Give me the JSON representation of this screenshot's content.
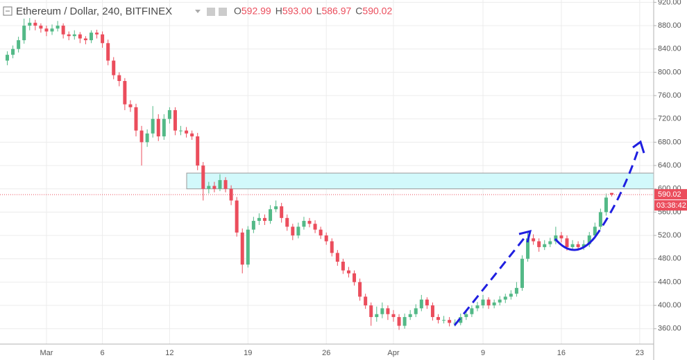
{
  "chart_data": {
    "type": "candlestick",
    "title": "Ethereum / Dollar, 240, BITFINEX",
    "ohlc_keys": [
      "O",
      "H",
      "L",
      "C"
    ],
    "ohlc_labels": [
      "592.99",
      "593.00",
      "586.97",
      "590.02"
    ],
    "countdown": "03:38:42",
    "up_color": "#53b987",
    "down_color": "#eb4d5c",
    "grid": true,
    "ylim": [
      336,
      924
    ],
    "yticks": [
      {
        "value": 360,
        "label": "360.00"
      },
      {
        "value": 400,
        "label": "400.00"
      },
      {
        "value": 440,
        "label": "440.00"
      },
      {
        "value": 480,
        "label": "480.00"
      },
      {
        "value": 520,
        "label": "520.00"
      },
      {
        "value": 560,
        "label": "560.00"
      },
      {
        "value": 600,
        "label": "600.00"
      },
      {
        "value": 640,
        "label": "640.00"
      },
      {
        "value": 680,
        "label": "680.00"
      },
      {
        "value": 720,
        "label": "720.00"
      },
      {
        "value": 760,
        "label": "760.00"
      },
      {
        "value": 800,
        "label": "800.00"
      },
      {
        "value": 840,
        "label": "840.00"
      },
      {
        "value": 880,
        "label": "880.00"
      },
      {
        "value": 920,
        "label": "920.00"
      }
    ],
    "zone": {
      "low": 600,
      "high": 627
    },
    "categories": [
      null,
      null,
      null,
      null,
      null,
      null,
      null,
      "Mar",
      null,
      null,
      null,
      null,
      null,
      null,
      null,
      null,
      null,
      "6",
      null,
      null,
      null,
      null,
      null,
      null,
      null,
      null,
      null,
      null,
      null,
      "12",
      null,
      null,
      null,
      null,
      null,
      null,
      null,
      null,
      null,
      null,
      null,
      null,
      null,
      "19",
      null,
      null,
      null,
      null,
      null,
      null,
      null,
      null,
      null,
      null,
      null,
      null,
      null,
      "26",
      null,
      null,
      null,
      null,
      null,
      null,
      null,
      null,
      null,
      null,
      null,
      "Apr",
      null,
      null,
      null,
      null,
      null,
      null,
      null,
      null,
      null,
      null,
      null,
      null,
      null,
      null,
      null,
      "9",
      null,
      null,
      null,
      null,
      null,
      null,
      null,
      null,
      null,
      null,
      null,
      null,
      null,
      "16",
      null,
      null,
      null,
      null,
      null,
      null,
      null,
      null,
      null,
      null,
      null,
      null,
      null,
      "23",
      null,
      null
    ],
    "candles": [
      [
        820,
        836,
        812,
        830
      ],
      [
        830,
        846,
        824,
        840
      ],
      [
        840,
        861,
        834,
        855
      ],
      [
        855,
        892,
        849,
        880
      ],
      [
        880,
        893,
        872,
        885
      ],
      [
        885,
        890,
        872,
        880
      ],
      [
        880,
        884,
        868,
        875
      ],
      [
        875,
        880,
        862,
        870
      ],
      [
        870,
        882,
        864,
        875
      ],
      [
        875,
        888,
        870,
        880
      ],
      [
        880,
        884,
        858,
        865
      ],
      [
        865,
        870,
        855,
        862
      ],
      [
        862,
        872,
        856,
        865
      ],
      [
        865,
        869,
        850,
        858
      ],
      [
        858,
        862,
        848,
        855
      ],
      [
        855,
        872,
        850,
        868
      ],
      [
        868,
        873,
        858,
        865
      ],
      [
        865,
        870,
        842,
        850
      ],
      [
        850,
        856,
        812,
        820
      ],
      [
        820,
        826,
        788,
        795
      ],
      [
        795,
        800,
        776,
        785
      ],
      [
        785,
        790,
        735,
        745
      ],
      [
        745,
        752,
        732,
        740
      ],
      [
        740,
        746,
        690,
        700
      ],
      [
        700,
        708,
        640,
        680
      ],
      [
        680,
        702,
        672,
        695
      ],
      [
        695,
        742,
        688,
        720
      ],
      [
        720,
        728,
        682,
        690
      ],
      [
        690,
        728,
        684,
        720
      ],
      [
        720,
        740,
        712,
        735
      ],
      [
        735,
        740,
        692,
        700
      ],
      [
        700,
        708,
        692,
        700
      ],
      [
        700,
        706,
        688,
        695
      ],
      [
        695,
        700,
        684,
        690
      ],
      [
        690,
        696,
        632,
        640
      ],
      [
        640,
        646,
        580,
        600
      ],
      [
        600,
        612,
        592,
        605
      ],
      [
        605,
        612,
        594,
        600
      ],
      [
        600,
        625,
        596,
        615
      ],
      [
        615,
        620,
        594,
        600
      ],
      [
        600,
        606,
        572,
        580
      ],
      [
        580,
        586,
        518,
        525
      ],
      [
        525,
        532,
        455,
        470
      ],
      [
        470,
        536,
        465,
        530
      ],
      [
        530,
        552,
        524,
        545
      ],
      [
        545,
        558,
        538,
        550
      ],
      [
        550,
        556,
        538,
        545
      ],
      [
        545,
        572,
        540,
        565
      ],
      [
        565,
        580,
        560,
        570
      ],
      [
        570,
        576,
        542,
        550
      ],
      [
        550,
        556,
        528,
        535
      ],
      [
        535,
        540,
        512,
        520
      ],
      [
        520,
        542,
        515,
        535
      ],
      [
        535,
        552,
        530,
        545
      ],
      [
        545,
        550,
        534,
        540
      ],
      [
        540,
        546,
        524,
        530
      ],
      [
        530,
        535,
        514,
        520
      ],
      [
        520,
        525,
        504,
        510
      ],
      [
        510,
        515,
        484,
        490
      ],
      [
        490,
        495,
        468,
        475
      ],
      [
        475,
        480,
        454,
        460
      ],
      [
        460,
        466,
        448,
        455
      ],
      [
        455,
        460,
        434,
        440
      ],
      [
        440,
        446,
        408,
        415
      ],
      [
        415,
        420,
        394,
        400
      ],
      [
        400,
        405,
        365,
        380
      ],
      [
        380,
        398,
        372,
        385
      ],
      [
        385,
        405,
        378,
        395
      ],
      [
        395,
        400,
        375,
        385
      ],
      [
        385,
        392,
        372,
        380
      ],
      [
        380,
        385,
        358,
        365
      ],
      [
        365,
        386,
        360,
        380
      ],
      [
        380,
        392,
        375,
        385
      ],
      [
        385,
        402,
        380,
        395
      ],
      [
        395,
        418,
        390,
        410
      ],
      [
        410,
        414,
        394,
        400
      ],
      [
        400,
        405,
        374,
        380
      ],
      [
        380,
        385,
        369,
        375
      ],
      [
        375,
        382,
        369,
        375
      ],
      [
        375,
        380,
        364,
        370
      ],
      [
        370,
        376,
        364,
        370
      ],
      [
        370,
        386,
        366,
        380
      ],
      [
        380,
        390,
        375,
        385
      ],
      [
        385,
        400,
        380,
        395
      ],
      [
        395,
        406,
        390,
        400
      ],
      [
        400,
        418,
        395,
        410
      ],
      [
        410,
        414,
        394,
        400
      ],
      [
        400,
        410,
        395,
        405
      ],
      [
        405,
        416,
        400,
        410
      ],
      [
        410,
        420,
        404,
        415
      ],
      [
        415,
        426,
        410,
        420
      ],
      [
        420,
        440,
        415,
        430
      ],
      [
        430,
        486,
        425,
        480
      ],
      [
        480,
        525,
        475,
        515
      ],
      [
        515,
        522,
        504,
        510
      ],
      [
        510,
        515,
        492,
        500
      ],
      [
        500,
        512,
        495,
        505
      ],
      [
        505,
        516,
        500,
        510
      ],
      [
        510,
        535,
        505,
        520
      ],
      [
        520,
        526,
        508,
        515
      ],
      [
        515,
        520,
        494,
        500
      ],
      [
        500,
        512,
        495,
        505
      ],
      [
        505,
        510,
        494,
        500
      ],
      [
        500,
        512,
        495,
        505
      ],
      [
        505,
        526,
        500,
        520
      ],
      [
        520,
        542,
        515,
        535
      ],
      [
        535,
        566,
        530,
        560
      ],
      [
        560,
        592,
        554,
        585
      ],
      [
        592.99,
        593,
        586.97,
        590.02
      ],
      null,
      null,
      null,
      null,
      null,
      null,
      null
    ]
  }
}
